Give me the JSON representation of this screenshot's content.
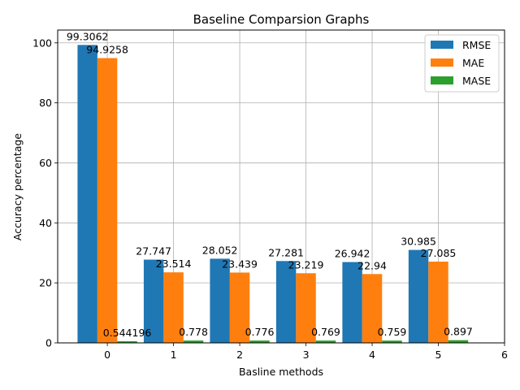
{
  "chart_data": {
    "type": "bar",
    "title": "Baseline Comparsion Graphs",
    "xlabel": "Basline methods",
    "ylabel": "Accuracy percentage",
    "categories": [
      0,
      1,
      2,
      3,
      4,
      5
    ],
    "xlim": [
      -0.75,
      6
    ],
    "ylim": [
      0,
      104.27
    ],
    "xticks": [
      "0",
      "1",
      "2",
      "3",
      "4",
      "5",
      "6"
    ],
    "yticks": [
      "0",
      "20",
      "40",
      "60",
      "80",
      "100"
    ],
    "grid": true,
    "legend_position": "top-right",
    "series": [
      {
        "name": "RMSE",
        "color": "#1f77b4",
        "values": [
          99.3062,
          27.747,
          28.052,
          27.281,
          26.942,
          30.985
        ],
        "labels": [
          "99.3062",
          "27.747",
          "28.052",
          "27.281",
          "26.942",
          "30.985"
        ]
      },
      {
        "name": "MAE",
        "color": "#ff7f0e",
        "values": [
          94.9258,
          23.514,
          23.439,
          23.219,
          22.94,
          27.085
        ],
        "labels": [
          "94.9258",
          "23.514",
          "23.439",
          "23.219",
          "22.94",
          "27.085"
        ]
      },
      {
        "name": "MASE",
        "color": "#2ca02c",
        "values": [
          0.544196,
          0.778,
          0.776,
          0.769,
          0.759,
          0.897
        ],
        "labels": [
          "0.544196",
          "0.778",
          "0.776",
          "0.769",
          "0.759",
          "0.897"
        ]
      }
    ]
  }
}
